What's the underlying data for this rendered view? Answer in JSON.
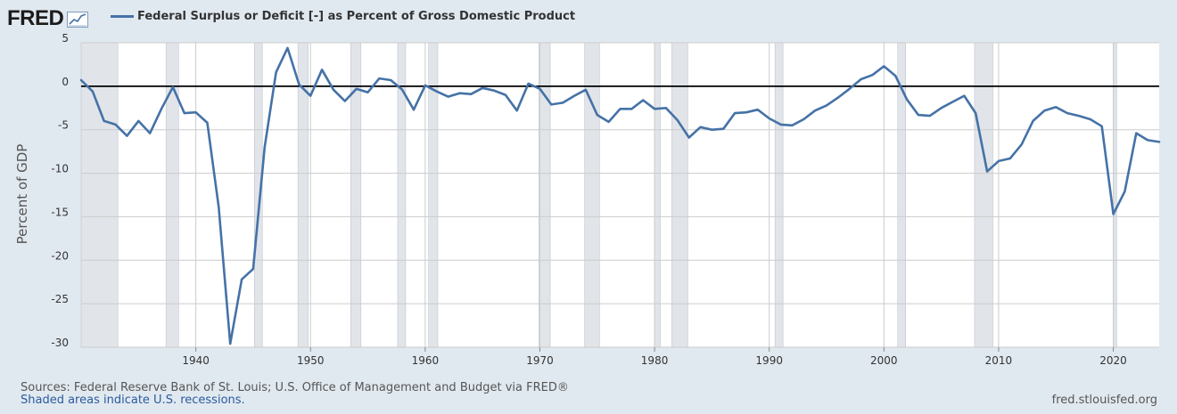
{
  "header": {
    "logo_text": "FRED",
    "logo_icon": "sparkline-chart-icon"
  },
  "colors": {
    "page_background": "#e1e9f0",
    "plot_background": "#ffffff",
    "series_line": "#4572a7",
    "recession_shading": "#e1e4e9",
    "zero_line": "#000000",
    "grid": "#cccccc"
  },
  "footer": {
    "sources": "Sources: Federal Reserve Bank of St. Louis; U.S. Office of Management and Budget via FRED®",
    "recession_note": "Shaded areas indicate U.S. recessions.",
    "site": "fred.stlouisfed.org"
  },
  "chart_data": {
    "type": "line",
    "title": "",
    "ylabel": "Percent of GDP",
    "xlabel": "",
    "xlim": [
      1930,
      2024
    ],
    "ylim": [
      -30,
      5
    ],
    "grid": true,
    "legend_position": "top-left",
    "x_tick_labels": [
      "1940",
      "1950",
      "1960",
      "1970",
      "1980",
      "1990",
      "2000",
      "2010",
      "2020"
    ],
    "y_tick_labels": [
      "5",
      "0",
      "-5",
      "-10",
      "-15",
      "-20",
      "-25",
      "-30"
    ],
    "reference_line_y": 0,
    "recessions": [
      [
        1929.6,
        1933.2
      ],
      [
        1937.4,
        1938.5
      ],
      [
        1945.1,
        1945.8
      ],
      [
        1948.9,
        1949.8
      ],
      [
        1953.5,
        1954.4
      ],
      [
        1957.6,
        1958.3
      ],
      [
        1960.3,
        1961.1
      ],
      [
        1969.9,
        1970.9
      ],
      [
        1973.9,
        1975.2
      ],
      [
        1980.0,
        1980.5
      ],
      [
        1981.5,
        1982.9
      ],
      [
        1990.5,
        1991.2
      ],
      [
        2001.2,
        2001.9
      ],
      [
        2007.9,
        2009.5
      ],
      [
        2020.1,
        2020.3
      ]
    ],
    "series": [
      {
        "name": "Federal Surplus or Deficit [-] as Percent of Gross Domestic Product",
        "x": [
          1930,
          1931,
          1932,
          1933,
          1934,
          1935,
          1936,
          1937,
          1938,
          1939,
          1940,
          1941,
          1942,
          1943,
          1944,
          1945,
          1946,
          1947,
          1948,
          1949,
          1950,
          1951,
          1952,
          1953,
          1954,
          1955,
          1956,
          1957,
          1958,
          1959,
          1960,
          1961,
          1962,
          1963,
          1964,
          1965,
          1966,
          1967,
          1968,
          1969,
          1970,
          1971,
          1972,
          1973,
          1974,
          1975,
          1976,
          1977,
          1978,
          1979,
          1980,
          1981,
          1982,
          1983,
          1984,
          1985,
          1986,
          1987,
          1988,
          1989,
          1990,
          1991,
          1992,
          1993,
          1994,
          1995,
          1996,
          1997,
          1998,
          1999,
          2000,
          2001,
          2002,
          2003,
          2004,
          2005,
          2006,
          2007,
          2008,
          2009,
          2010,
          2011,
          2012,
          2013,
          2014,
          2015,
          2016,
          2017,
          2018,
          2019,
          2020,
          2021,
          2022,
          2023,
          2024
        ],
        "values": [
          0.7,
          -0.6,
          -4.0,
          -4.4,
          -5.7,
          -4.0,
          -5.4,
          -2.6,
          -0.1,
          -3.1,
          -3.0,
          -4.2,
          -13.9,
          -29.6,
          -22.2,
          -21.0,
          -7.0,
          1.6,
          4.4,
          0.2,
          -1.1,
          1.9,
          -0.4,
          -1.7,
          -0.3,
          -0.7,
          0.9,
          0.7,
          -0.4,
          -2.7,
          0.1,
          -0.6,
          -1.2,
          -0.8,
          -0.9,
          -0.2,
          -0.5,
          -1.0,
          -2.8,
          0.3,
          -0.3,
          -2.1,
          -1.9,
          -1.1,
          -0.4,
          -3.3,
          -4.1,
          -2.6,
          -2.6,
          -1.6,
          -2.6,
          -2.5,
          -3.9,
          -5.9,
          -4.7,
          -5.0,
          -4.9,
          -3.1,
          -3.0,
          -2.7,
          -3.7,
          -4.4,
          -4.5,
          -3.8,
          -2.8,
          -2.2,
          -1.3,
          -0.3,
          0.8,
          1.3,
          2.3,
          1.2,
          -1.5,
          -3.3,
          -3.4,
          -2.5,
          -1.8,
          -1.1,
          -3.1,
          -9.8,
          -8.6,
          -8.3,
          -6.7,
          -4.0,
          -2.8,
          -2.4,
          -3.1,
          -3.4,
          -3.8,
          -4.6,
          -14.7,
          -12.1,
          -5.4,
          -6.2,
          -6.4
        ]
      }
    ]
  }
}
